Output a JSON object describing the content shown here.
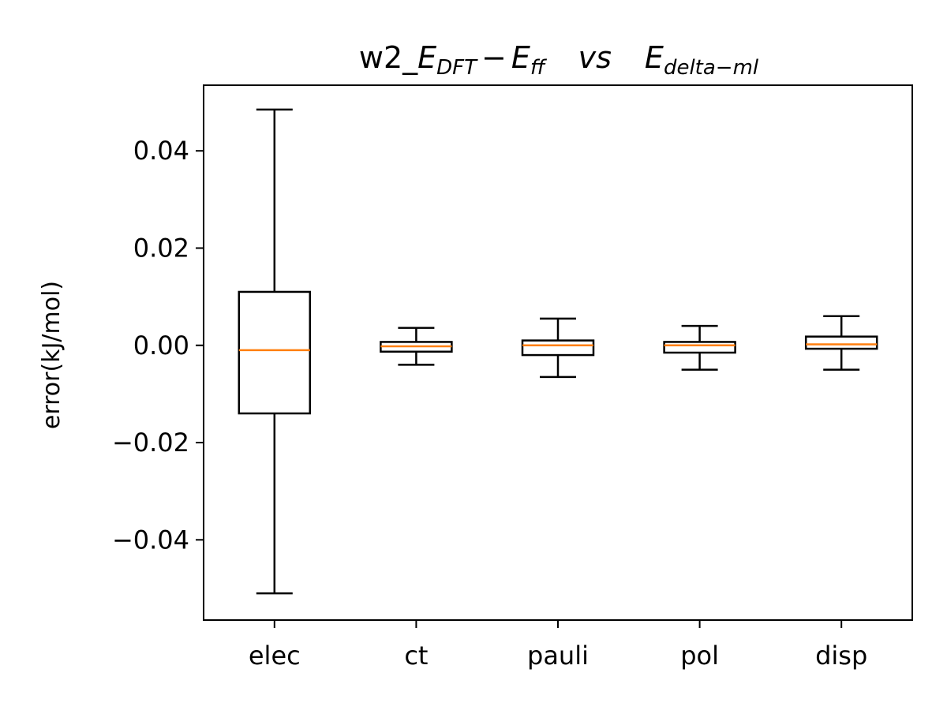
{
  "chart_data": {
    "type": "box",
    "title": {
      "prefix": "w2_",
      "e1": "E",
      "e1_sub": "DFT",
      "minus": "−",
      "e2": "E",
      "e2_sub": "ff",
      "vs": "vs",
      "e3": "E",
      "e3_sub": "delta−ml"
    },
    "xlabel": "",
    "ylabel": "error(kJ/mol)",
    "categories": [
      "elec",
      "ct",
      "pauli",
      "pol",
      "disp"
    ],
    "boxes": [
      {
        "whisker_low": -0.051,
        "q1": -0.014,
        "median": -0.001,
        "q3": 0.011,
        "whisker_high": 0.0485
      },
      {
        "whisker_low": -0.004,
        "q1": -0.0013,
        "median": -0.0002,
        "q3": 0.0007,
        "whisker_high": 0.0036
      },
      {
        "whisker_low": -0.0065,
        "q1": -0.002,
        "median": 0.0,
        "q3": 0.001,
        "whisker_high": 0.0055
      },
      {
        "whisker_low": -0.005,
        "q1": -0.0015,
        "median": 0.0,
        "q3": 0.0007,
        "whisker_high": 0.004
      },
      {
        "whisker_low": -0.005,
        "q1": -0.0007,
        "median": 0.0002,
        "q3": 0.0018,
        "whisker_high": 0.006
      }
    ],
    "yticks": [
      -0.04,
      -0.02,
      0.0,
      0.02,
      0.04
    ],
    "ytick_labels": [
      "−0.04",
      "−0.02",
      "0.00",
      "0.02",
      "0.04"
    ],
    "ylim": [
      -0.0565,
      0.0535
    ],
    "grid": false,
    "colors": {
      "box": "#000000",
      "median": "#ff7f0e"
    }
  }
}
